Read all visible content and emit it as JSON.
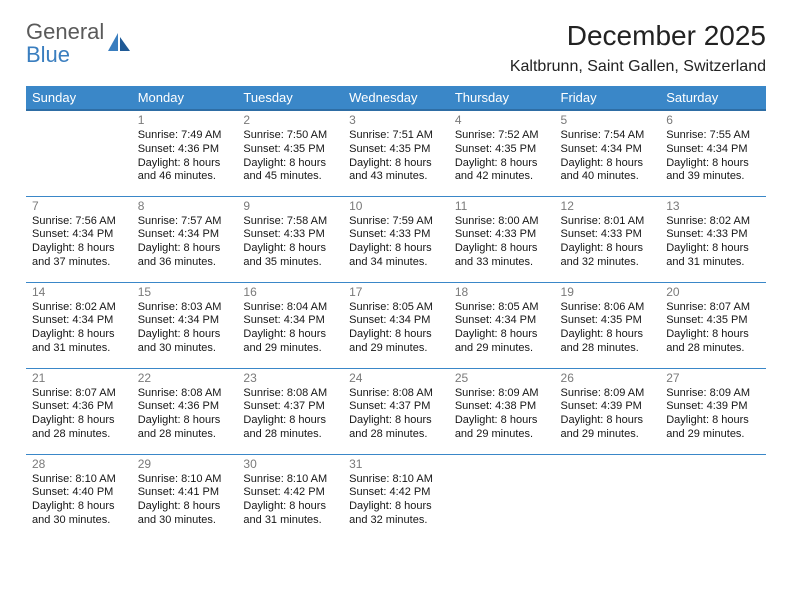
{
  "brand": {
    "line1": "General",
    "line2": "Blue"
  },
  "title": "December 2025",
  "location": "Kaltbrunn, Saint Gallen, Switzerland",
  "colors": {
    "headerBg": "#3a87c8",
    "headerText": "#ffffff",
    "ruleColor": "#3a87c8",
    "dayNum": "#7a7a7a",
    "logoGray": "#5a5a5a",
    "logoBlue": "#3a7ebf"
  },
  "columns": [
    "Sunday",
    "Monday",
    "Tuesday",
    "Wednesday",
    "Thursday",
    "Friday",
    "Saturday"
  ],
  "weeks": [
    [
      null,
      {
        "n": "1",
        "sr": "7:49 AM",
        "ss": "4:36 PM",
        "dl": "8 hours and 46 minutes."
      },
      {
        "n": "2",
        "sr": "7:50 AM",
        "ss": "4:35 PM",
        "dl": "8 hours and 45 minutes."
      },
      {
        "n": "3",
        "sr": "7:51 AM",
        "ss": "4:35 PM",
        "dl": "8 hours and 43 minutes."
      },
      {
        "n": "4",
        "sr": "7:52 AM",
        "ss": "4:35 PM",
        "dl": "8 hours and 42 minutes."
      },
      {
        "n": "5",
        "sr": "7:54 AM",
        "ss": "4:34 PM",
        "dl": "8 hours and 40 minutes."
      },
      {
        "n": "6",
        "sr": "7:55 AM",
        "ss": "4:34 PM",
        "dl": "8 hours and 39 minutes."
      }
    ],
    [
      {
        "n": "7",
        "sr": "7:56 AM",
        "ss": "4:34 PM",
        "dl": "8 hours and 37 minutes."
      },
      {
        "n": "8",
        "sr": "7:57 AM",
        "ss": "4:34 PM",
        "dl": "8 hours and 36 minutes."
      },
      {
        "n": "9",
        "sr": "7:58 AM",
        "ss": "4:33 PM",
        "dl": "8 hours and 35 minutes."
      },
      {
        "n": "10",
        "sr": "7:59 AM",
        "ss": "4:33 PM",
        "dl": "8 hours and 34 minutes."
      },
      {
        "n": "11",
        "sr": "8:00 AM",
        "ss": "4:33 PM",
        "dl": "8 hours and 33 minutes."
      },
      {
        "n": "12",
        "sr": "8:01 AM",
        "ss": "4:33 PM",
        "dl": "8 hours and 32 minutes."
      },
      {
        "n": "13",
        "sr": "8:02 AM",
        "ss": "4:33 PM",
        "dl": "8 hours and 31 minutes."
      }
    ],
    [
      {
        "n": "14",
        "sr": "8:02 AM",
        "ss": "4:34 PM",
        "dl": "8 hours and 31 minutes."
      },
      {
        "n": "15",
        "sr": "8:03 AM",
        "ss": "4:34 PM",
        "dl": "8 hours and 30 minutes."
      },
      {
        "n": "16",
        "sr": "8:04 AM",
        "ss": "4:34 PM",
        "dl": "8 hours and 29 minutes."
      },
      {
        "n": "17",
        "sr": "8:05 AM",
        "ss": "4:34 PM",
        "dl": "8 hours and 29 minutes."
      },
      {
        "n": "18",
        "sr": "8:05 AM",
        "ss": "4:34 PM",
        "dl": "8 hours and 29 minutes."
      },
      {
        "n": "19",
        "sr": "8:06 AM",
        "ss": "4:35 PM",
        "dl": "8 hours and 28 minutes."
      },
      {
        "n": "20",
        "sr": "8:07 AM",
        "ss": "4:35 PM",
        "dl": "8 hours and 28 minutes."
      }
    ],
    [
      {
        "n": "21",
        "sr": "8:07 AM",
        "ss": "4:36 PM",
        "dl": "8 hours and 28 minutes."
      },
      {
        "n": "22",
        "sr": "8:08 AM",
        "ss": "4:36 PM",
        "dl": "8 hours and 28 minutes."
      },
      {
        "n": "23",
        "sr": "8:08 AM",
        "ss": "4:37 PM",
        "dl": "8 hours and 28 minutes."
      },
      {
        "n": "24",
        "sr": "8:08 AM",
        "ss": "4:37 PM",
        "dl": "8 hours and 28 minutes."
      },
      {
        "n": "25",
        "sr": "8:09 AM",
        "ss": "4:38 PM",
        "dl": "8 hours and 29 minutes."
      },
      {
        "n": "26",
        "sr": "8:09 AM",
        "ss": "4:39 PM",
        "dl": "8 hours and 29 minutes."
      },
      {
        "n": "27",
        "sr": "8:09 AM",
        "ss": "4:39 PM",
        "dl": "8 hours and 29 minutes."
      }
    ],
    [
      {
        "n": "28",
        "sr": "8:10 AM",
        "ss": "4:40 PM",
        "dl": "8 hours and 30 minutes."
      },
      {
        "n": "29",
        "sr": "8:10 AM",
        "ss": "4:41 PM",
        "dl": "8 hours and 30 minutes."
      },
      {
        "n": "30",
        "sr": "8:10 AM",
        "ss": "4:42 PM",
        "dl": "8 hours and 31 minutes."
      },
      {
        "n": "31",
        "sr": "8:10 AM",
        "ss": "4:42 PM",
        "dl": "8 hours and 32 minutes."
      },
      null,
      null,
      null
    ]
  ],
  "labels": {
    "sunrise": "Sunrise: ",
    "sunset": "Sunset: ",
    "daylight": "Daylight: "
  }
}
